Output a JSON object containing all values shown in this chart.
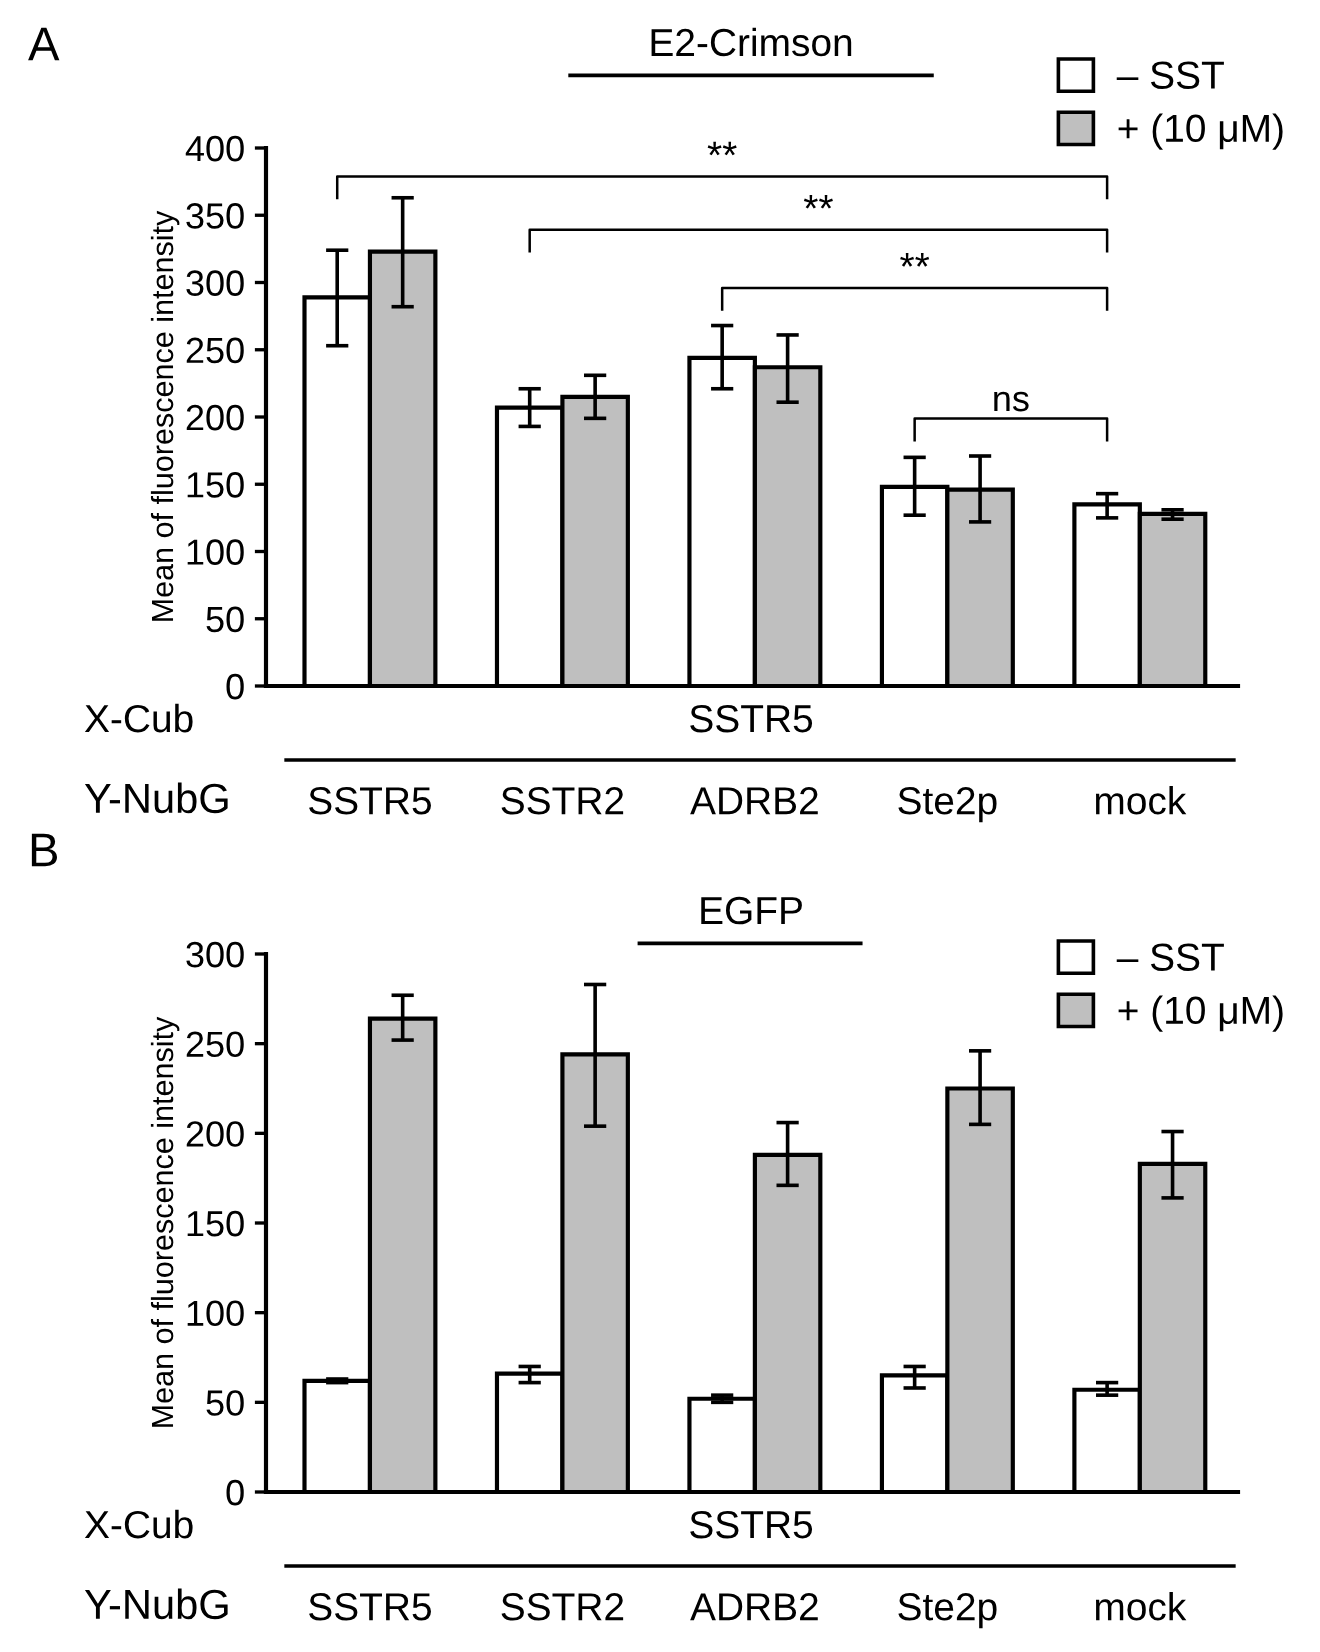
{
  "chart_data": [
    {
      "type": "bar",
      "title": "E2-Crimson",
      "ylabel": "Mean of fluorescence intensity",
      "categories": [
        "SSTR5",
        "SSTR2",
        "ADRB2",
        "Ste2p",
        "mock"
      ],
      "series": [
        {
          "name": "– SST",
          "color": "#ffffff",
          "values": [
            289,
            207,
            244,
            148,
            135
          ],
          "errors": [
            [
              253,
              324
            ],
            [
              193,
              221
            ],
            [
              221,
              268
            ],
            [
              127,
              170
            ],
            [
              125,
              143
            ]
          ]
        },
        {
          "name": "+ (10 μM)",
          "color": "#bfbfbf",
          "values": [
            323,
            215,
            237,
            146,
            128
          ],
          "errors": [
            [
              282,
              363
            ],
            [
              199,
              231
            ],
            [
              211,
              261
            ],
            [
              122,
              171
            ],
            [
              124,
              131
            ]
          ]
        }
      ],
      "ylim": [
        0,
        400
      ],
      "yticks": [
        0,
        50,
        100,
        150,
        200,
        250,
        300,
        350,
        400
      ],
      "grid": false,
      "legend": "top right",
      "annotations": [
        "A",
        "X-Cub",
        "SSTR5",
        "Y-NubG",
        "**",
        "**",
        "**",
        "ns"
      ]
    },
    {
      "type": "bar",
      "title": "EGFP",
      "ylabel": "Mean of fluorescence intensity",
      "categories": [
        "SSTR5",
        "SSTR2",
        "ADRB2",
        "Ste2p",
        "mock"
      ],
      "series": [
        {
          "name": "– SST",
          "color": "#ffffff",
          "values": [
            62,
            66,
            52,
            65,
            57
          ],
          "errors": [
            [
              61,
              63
            ],
            [
              61,
              70
            ],
            [
              50,
              54
            ],
            [
              58,
              70
            ],
            [
              54,
              61
            ]
          ]
        },
        {
          "name": "+ (10 μM)",
          "color": "#bfbfbf",
          "values": [
            264,
            244,
            188,
            225,
            183
          ],
          "errors": [
            [
              252,
              277
            ],
            [
              204,
              283
            ],
            [
              171,
              206
            ],
            [
              205,
              246
            ],
            [
              164,
              201
            ]
          ]
        }
      ],
      "ylim": [
        0,
        300
      ],
      "yticks": [
        0,
        50,
        100,
        150,
        200,
        250,
        300
      ],
      "grid": false,
      "legend": "top right",
      "annotations": [
        "B",
        "X-Cub",
        "SSTR5",
        "Y-NubG"
      ]
    }
  ]
}
